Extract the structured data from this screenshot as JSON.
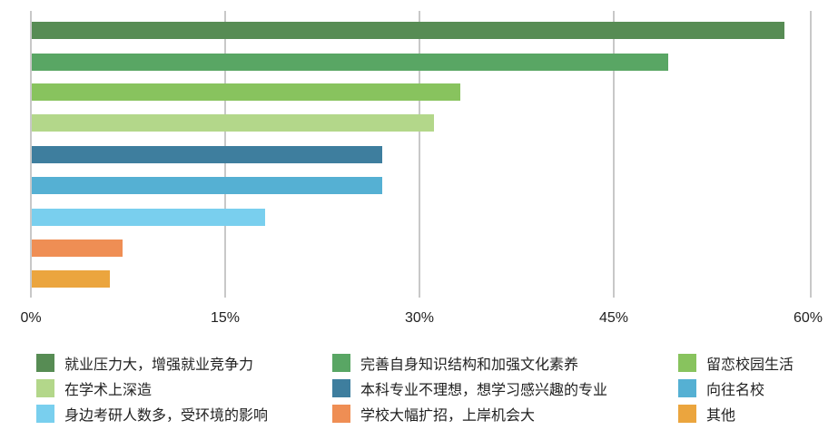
{
  "chart_data": {
    "type": "bar",
    "orientation": "horizontal",
    "title": "",
    "xlabel": "",
    "ylabel": "",
    "xlim": [
      0,
      60
    ],
    "grid": true,
    "legend_position": "bottom",
    "x_ticks": [
      "0%",
      "15%",
      "30%",
      "45%",
      "60%"
    ],
    "categories": [
      "就业压力大，增强就业竞争力",
      "完善自身知识结构和加强文化素养",
      "留恋校园生活",
      "在学术上深造",
      "本科专业不理想，想学习感兴趣的专业",
      "向往名校",
      "身边考研人数多，受环境的影响",
      "学校大幅扩招，上岸机会大",
      "其他"
    ],
    "values": [
      58,
      49,
      33,
      31,
      27,
      27,
      18,
      7,
      6
    ],
    "colors": [
      "#578C54",
      "#59A664",
      "#88C35E",
      "#B3D78A",
      "#3E7E9E",
      "#55B0D3",
      "#79CFEE",
      "#EF8E54",
      "#EBA53E"
    ],
    "unit": "%"
  },
  "legend": [
    {
      "label": "就业压力大，增强就业竞争力",
      "color": "#578C54"
    },
    {
      "label": "完善自身知识结构和加强文化素养",
      "color": "#59A664"
    },
    {
      "label": "留恋校园生活",
      "color": "#88C35E"
    },
    {
      "label": "在学术上深造",
      "color": "#B3D78A"
    },
    {
      "label": "本科专业不理想，想学习感兴趣的专业",
      "color": "#3E7E9E"
    },
    {
      "label": "向往名校",
      "color": "#55B0D3"
    },
    {
      "label": "身边考研人数多，受环境的影响",
      "color": "#79CFEE"
    },
    {
      "label": "学校大幅扩招，上岸机会大",
      "color": "#EF8E54"
    },
    {
      "label": "其他",
      "color": "#EBA53E"
    }
  ]
}
